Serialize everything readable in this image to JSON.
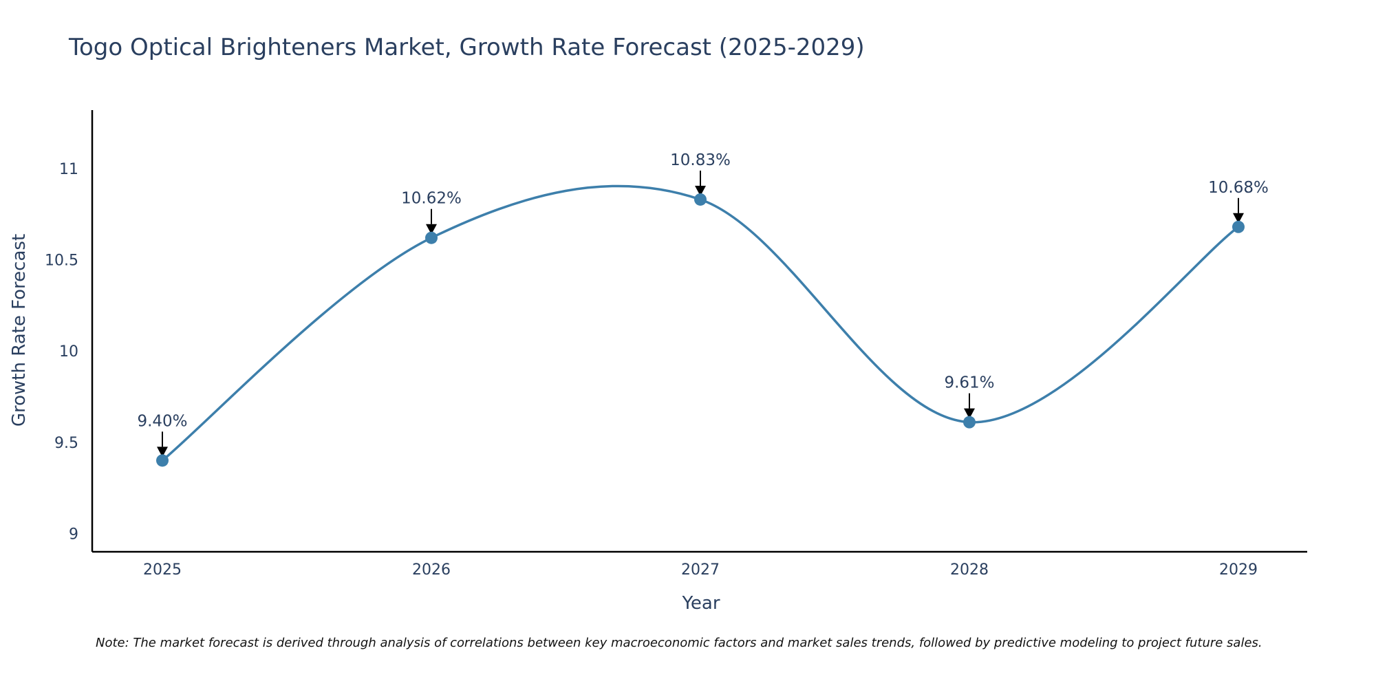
{
  "chart_data": {
    "type": "line",
    "title": "Togo Optical Brighteners Market, Growth Rate Forecast (2025-2029)",
    "xlabel": "Year",
    "ylabel": "Growth Rate Forecast",
    "categories": [
      "2025",
      "2026",
      "2027",
      "2028",
      "2029"
    ],
    "series": [
      {
        "name": "Growth Rate Forecast",
        "values": [
          9.4,
          10.62,
          10.83,
          9.61,
          10.68
        ],
        "labels": [
          "9.40%",
          "10.62%",
          "10.83%",
          "9.61%",
          "10.68%"
        ]
      }
    ],
    "ylim": [
      8.9,
      11.32
    ],
    "yticks": [
      9,
      9.5,
      10,
      10.5,
      11
    ],
    "ytick_labels": [
      "9",
      "9.5",
      "10",
      "10.5",
      "11"
    ],
    "grid": false,
    "line_color": "#3d7fab",
    "note": "Note: The market forecast is derived through analysis of correlations between key macroeconomic factors and market sales trends, followed by predictive modeling to project future sales."
  }
}
